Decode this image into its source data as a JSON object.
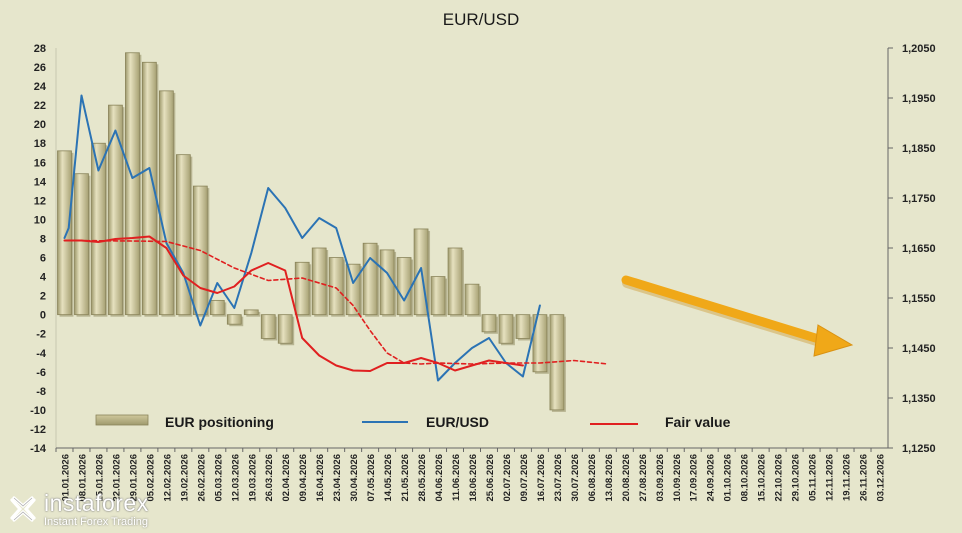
{
  "chart_data": {
    "type": "bar+line",
    "title": "EUR/USD",
    "left_axis": {
      "ticks": [
        "28",
        "26",
        "24",
        "22",
        "20",
        "18",
        "16",
        "14",
        "12",
        "10",
        "8",
        "6",
        "4",
        "2",
        "0",
        "-2",
        "-4",
        "-6",
        "-8",
        "-10",
        "-12",
        "-14"
      ],
      "ylim": [
        -14,
        28
      ]
    },
    "right_axis": {
      "ticks": [
        "1,2050",
        "1,1950",
        "1,1850",
        "1,1750",
        "1,1650",
        "1,1550",
        "1,1450",
        "1,1350",
        "1,1250"
      ],
      "ylim": [
        1.125,
        1.205
      ]
    },
    "x_ticks": [
      "01.01.2026",
      "08.01.2026",
      "15.01.2026",
      "22.01.2026",
      "29.01.2026",
      "05.02.2026",
      "12.02.2026",
      "19.02.2026",
      "26.02.2026",
      "05.03.2026",
      "12.03.2026",
      "19.03.2026",
      "26.03.2026",
      "02.04.2026",
      "09.04.2026",
      "16.04.2026",
      "23.04.2026",
      "30.04.2026",
      "07.05.2026",
      "14.05.2026",
      "21.05.2026",
      "28.05.2026",
      "04.06.2026",
      "11.06.2026",
      "18.06.2026",
      "25.06.2026",
      "02.07.2026",
      "09.07.2026",
      "16.07.2026",
      "23.07.2026",
      "30.07.2026",
      "06.08.2026",
      "13.08.2026",
      "20.08.2026",
      "27.08.2026",
      "03.09.2026",
      "10.09.2026",
      "17.09.2026",
      "24.09.2026",
      "01.10.2026",
      "08.10.2026",
      "15.10.2026",
      "22.10.2026",
      "29.10.2026",
      "05.11.2026",
      "12.11.2026",
      "19.11.2026",
      "26.11.2026",
      "03.12.2026"
    ],
    "series": [
      {
        "name": "EUR positioning",
        "kind": "bar",
        "color": "#c2bb8e",
        "values": [
          17.2,
          14.8,
          18.0,
          22.0,
          27.5,
          26.5,
          23.5,
          16.8,
          13.5,
          1.5,
          -1.0,
          0.5,
          -2.5,
          -3.0,
          5.5,
          7.0,
          6.0,
          5.3,
          7.5,
          6.8,
          6.0,
          9.0,
          4.0,
          7.0,
          3.2,
          -1.8,
          -3.0,
          -2.5,
          -6.0,
          -10.0
        ]
      },
      {
        "name": "EUR/USD",
        "kind": "line",
        "color": "#2b73b4",
        "points": [
          [
            0,
            1.167
          ],
          [
            0.25,
            1.169
          ],
          [
            1,
            1.1955
          ],
          [
            2,
            1.1805
          ],
          [
            3,
            1.1885
          ],
          [
            4,
            1.179
          ],
          [
            5,
            1.181
          ],
          [
            6,
            1.166
          ],
          [
            7,
            1.16
          ],
          [
            8,
            1.1495
          ],
          [
            9,
            1.158
          ],
          [
            10,
            1.153
          ],
          [
            11,
            1.164
          ],
          [
            12,
            1.177
          ],
          [
            13,
            1.173
          ],
          [
            14,
            1.167
          ],
          [
            15,
            1.171
          ],
          [
            16,
            1.169
          ],
          [
            17,
            1.158
          ],
          [
            18,
            1.163
          ],
          [
            19,
            1.16
          ],
          [
            20,
            1.1545
          ],
          [
            21,
            1.161
          ],
          [
            22,
            1.1385
          ],
          [
            23,
            1.142
          ],
          [
            24,
            1.145
          ],
          [
            25,
            1.147
          ],
          [
            26,
            1.142
          ],
          [
            27,
            1.1393
          ],
          [
            28,
            1.1535
          ]
        ]
      },
      {
        "name": "Fair value",
        "kind": "line",
        "color": "#e02020",
        "points": [
          [
            0,
            1.1665
          ],
          [
            1,
            1.1665
          ],
          [
            2,
            1.1662
          ],
          [
            3,
            1.1668
          ],
          [
            4,
            1.167
          ],
          [
            5,
            1.1673
          ],
          [
            6,
            1.165
          ],
          [
            7,
            1.1595
          ],
          [
            8,
            1.157
          ],
          [
            9,
            1.156
          ],
          [
            10,
            1.1573
          ],
          [
            11,
            1.1605
          ],
          [
            12,
            1.162
          ],
          [
            13,
            1.1605
          ],
          [
            14,
            1.147
          ],
          [
            15,
            1.1435
          ],
          [
            16,
            1.1415
          ],
          [
            17,
            1.1405
          ],
          [
            18,
            1.1404
          ],
          [
            19,
            1.142
          ],
          [
            20,
            1.142
          ],
          [
            21,
            1.143
          ],
          [
            22,
            1.142
          ],
          [
            23,
            1.1405
          ],
          [
            24,
            1.1415
          ],
          [
            25,
            1.1425
          ],
          [
            26,
            1.142
          ],
          [
            27,
            1.1415
          ]
        ]
      },
      {
        "name": "Fair value (projection)",
        "kind": "dashed-line",
        "color": "#e02020",
        "points": [
          [
            0,
            1.1665
          ],
          [
            4,
            1.1664
          ],
          [
            6,
            1.1663
          ],
          [
            8,
            1.1645
          ],
          [
            10,
            1.161
          ],
          [
            12,
            1.1585
          ],
          [
            14,
            1.159
          ],
          [
            16,
            1.157
          ],
          [
            17,
            1.1535
          ],
          [
            18,
            1.1485
          ],
          [
            19,
            1.144
          ],
          [
            20,
            1.142
          ],
          [
            21,
            1.1418
          ],
          [
            22,
            1.142
          ],
          [
            24,
            1.1418
          ],
          [
            26,
            1.142
          ],
          [
            28,
            1.142
          ],
          [
            30,
            1.1425
          ],
          [
            32,
            1.1418
          ]
        ]
      }
    ],
    "legend": [
      "EUR positioning",
      "EUR/USD",
      "Fair value"
    ],
    "legend_placement": "bottom",
    "grid": false,
    "annotation": "arrow-down-right"
  },
  "watermark": {
    "name": "instaforex",
    "tagline": "Instant Forex Trading",
    "logo_icon": "instaforex-logo-icon"
  },
  "colors": {
    "background": "#e6e6cc",
    "bar": "#c2bb8e",
    "bar_shade": "#d8d2ac",
    "eurusd": "#2b73b4",
    "fair_value": "#e02020",
    "arrow": "#f0a818"
  }
}
